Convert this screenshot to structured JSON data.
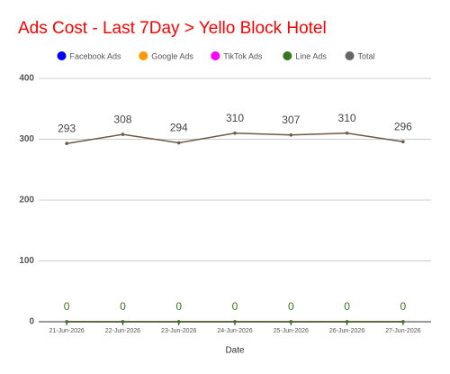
{
  "chart_data": {
    "type": "line",
    "title": "Ads Cost - Last 7Day > Yello Block Hotel",
    "x_label": "Date",
    "categories": [
      "21-Jun-2026",
      "22-Jun-2026",
      "23-Jun-2026",
      "24-Jun-2026",
      "25-Jun-2026",
      "26-Jun-2026",
      "27-Jun-2026"
    ],
    "series": [
      {
        "name": "Facebook Ads",
        "color": "#0000ff",
        "values": [
          0,
          0,
          0,
          0,
          0,
          0,
          0
        ],
        "labels": false
      },
      {
        "name": "Google Ads",
        "color": "#ff9900",
        "values": [
          0,
          0,
          0,
          0,
          0,
          0,
          0
        ],
        "labels": false
      },
      {
        "name": "TikTok Ads",
        "color": "#ff00ff",
        "values": [
          0,
          0,
          0,
          0,
          0,
          0,
          0
        ],
        "labels": false
      },
      {
        "name": "Line Ads",
        "color": "#38761d",
        "values": [
          0,
          0,
          0,
          0,
          0,
          0,
          0
        ],
        "labels": true
      },
      {
        "name": "Total",
        "color": "#666666",
        "line_color": "#6b5b47",
        "values": [
          293,
          308,
          294,
          310,
          307,
          310,
          296
        ],
        "labels": true
      }
    ],
    "ylim": [
      0,
      400
    ],
    "yticks": [
      0,
      100,
      200,
      300,
      400
    ],
    "grid": true,
    "legend": "top"
  }
}
